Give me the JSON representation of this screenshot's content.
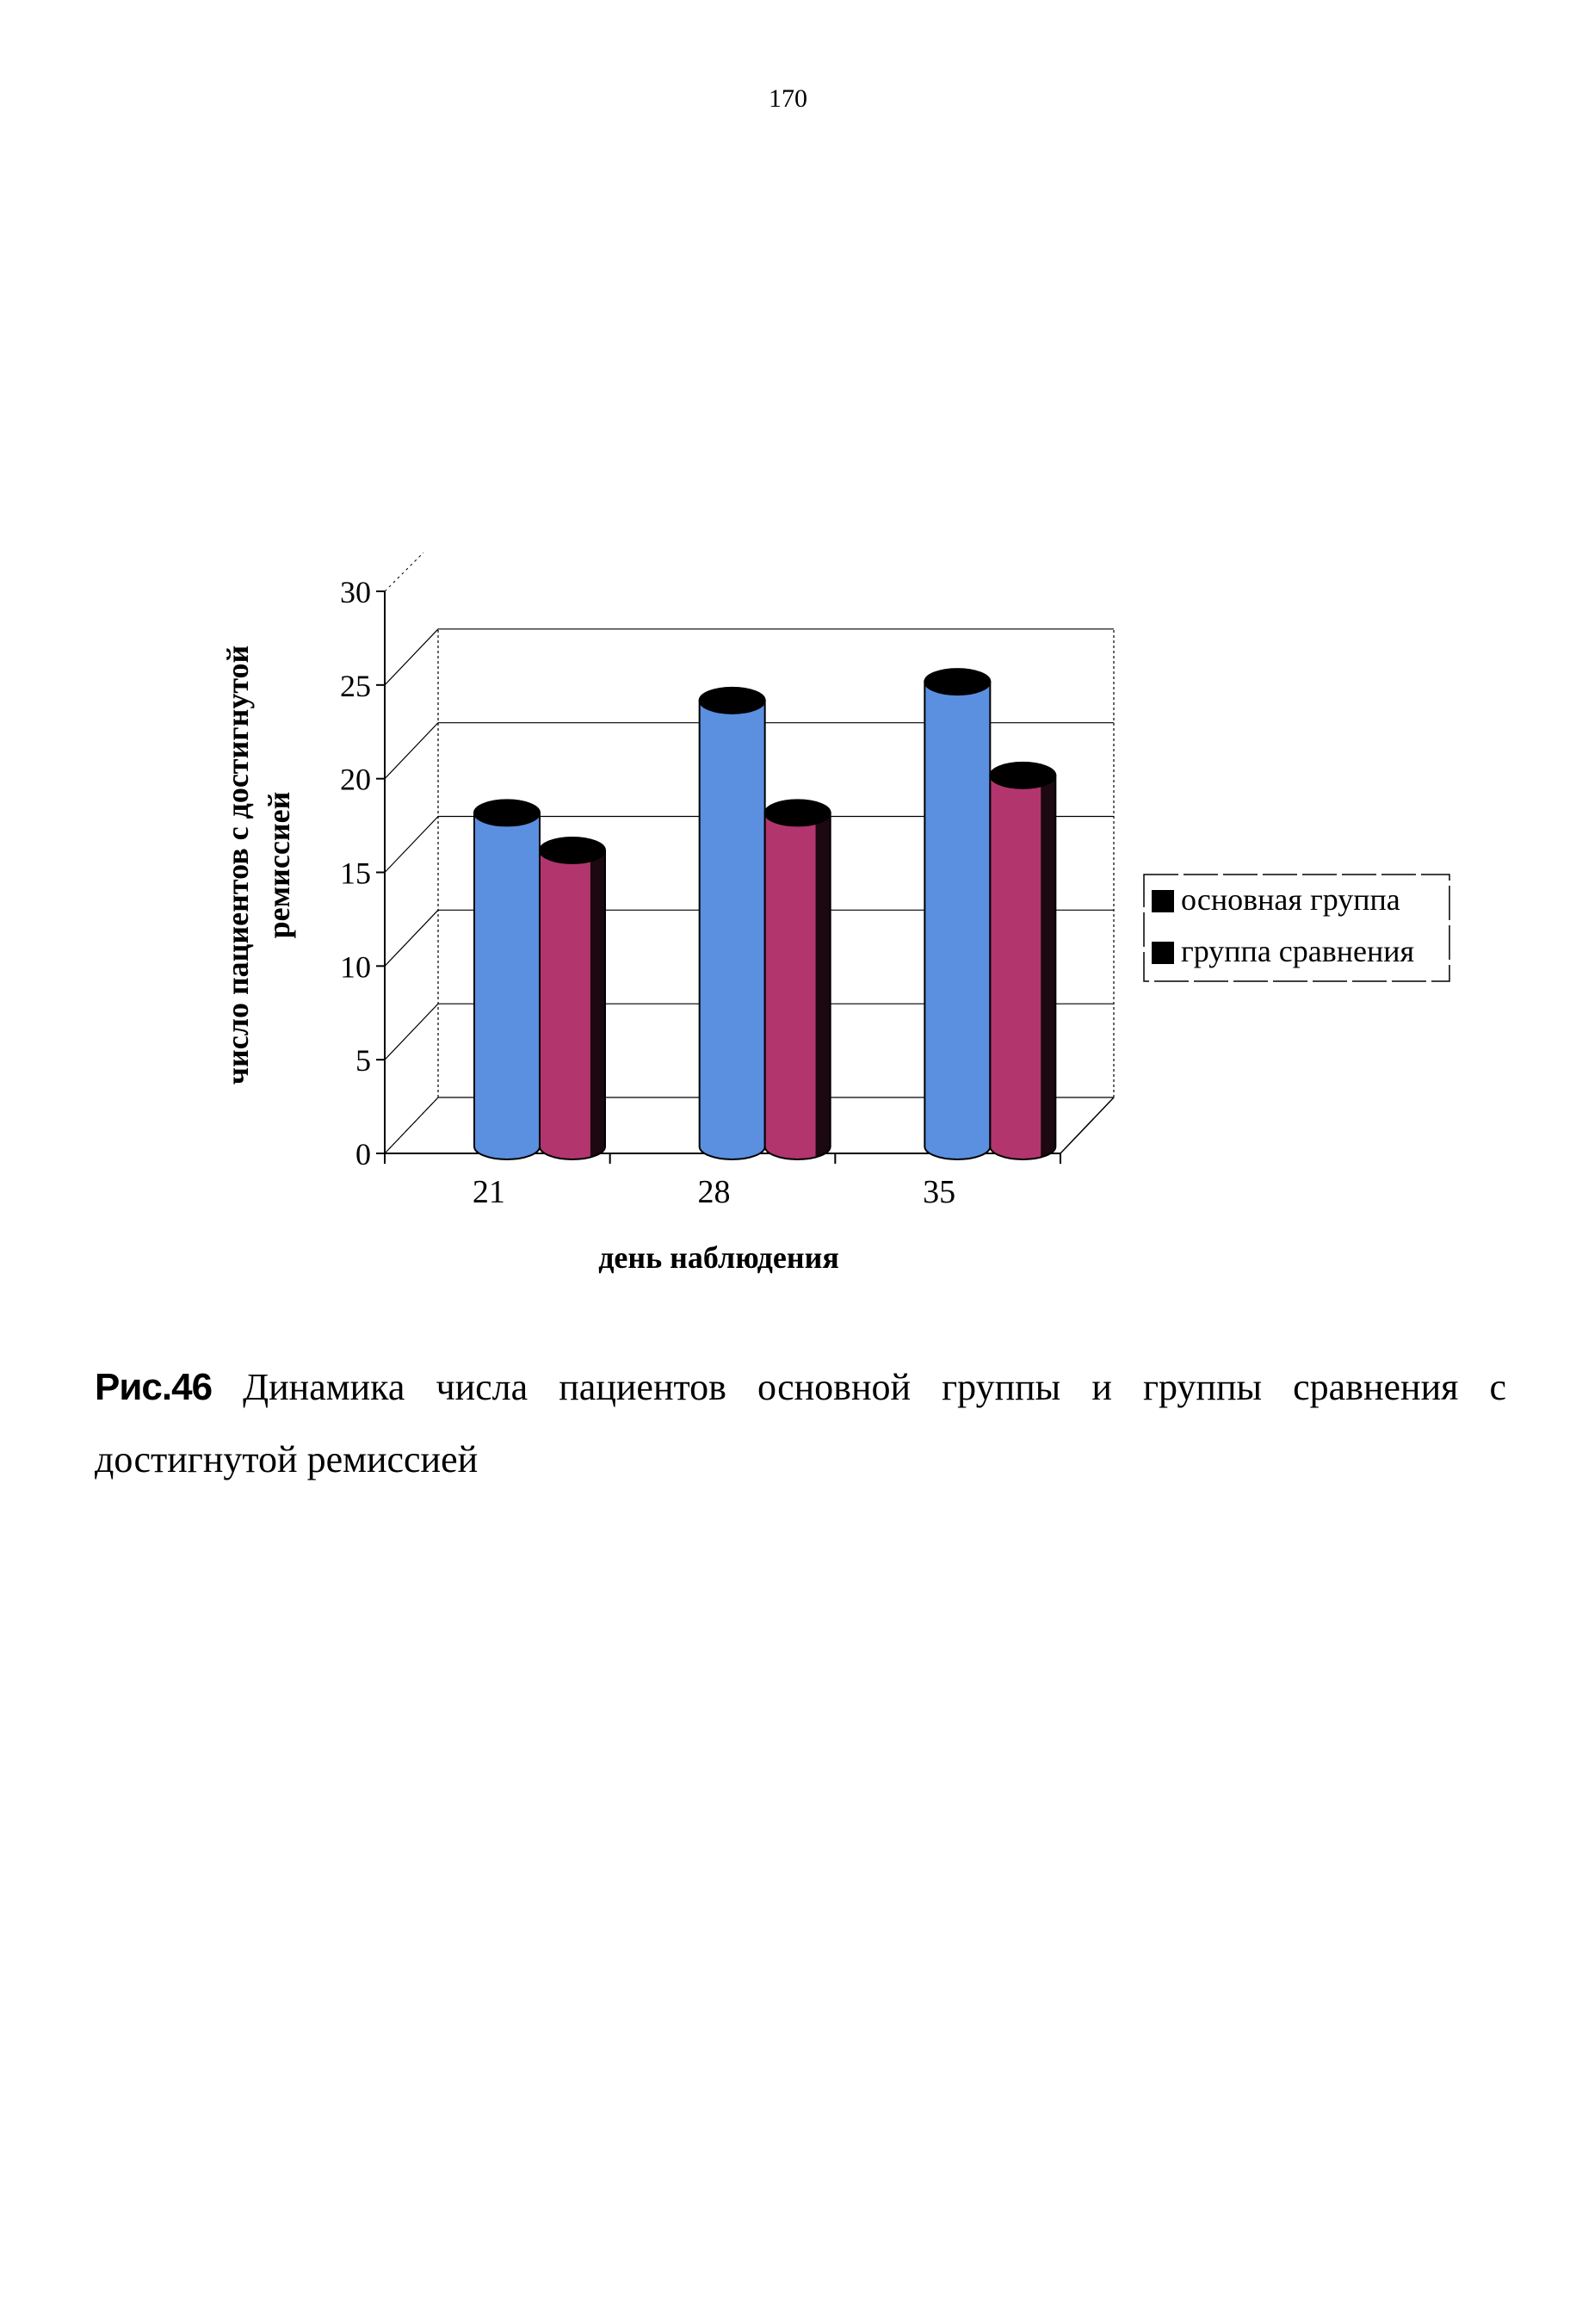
{
  "page_number": "170",
  "caption": {
    "label": "Рис.46",
    "text": " Динамика числа пациентов основной группы и группы сравнения с достигнутой ремиссией"
  },
  "colors": {
    "series_1": "#5b8fe0",
    "series_2": "#b2356e",
    "cap": "#000000",
    "grid": "#000000"
  },
  "chart_data": {
    "type": "bar",
    "variant": "3d-cylinder",
    "xlabel": "день наблюдения",
    "ylabel_lines": [
      "число пациентов с достигнутой",
      "ремиссией"
    ],
    "ylim": [
      0,
      30
    ],
    "yticks": [
      0,
      5,
      10,
      15,
      20,
      25,
      30
    ],
    "categories": [
      "21",
      "28",
      "35"
    ],
    "series": [
      {
        "name": "основная группа",
        "values": [
          19,
          25,
          26
        ]
      },
      {
        "name": "группа сравнения",
        "values": [
          17,
          19,
          21
        ]
      }
    ],
    "grid": true,
    "legend": "right"
  }
}
